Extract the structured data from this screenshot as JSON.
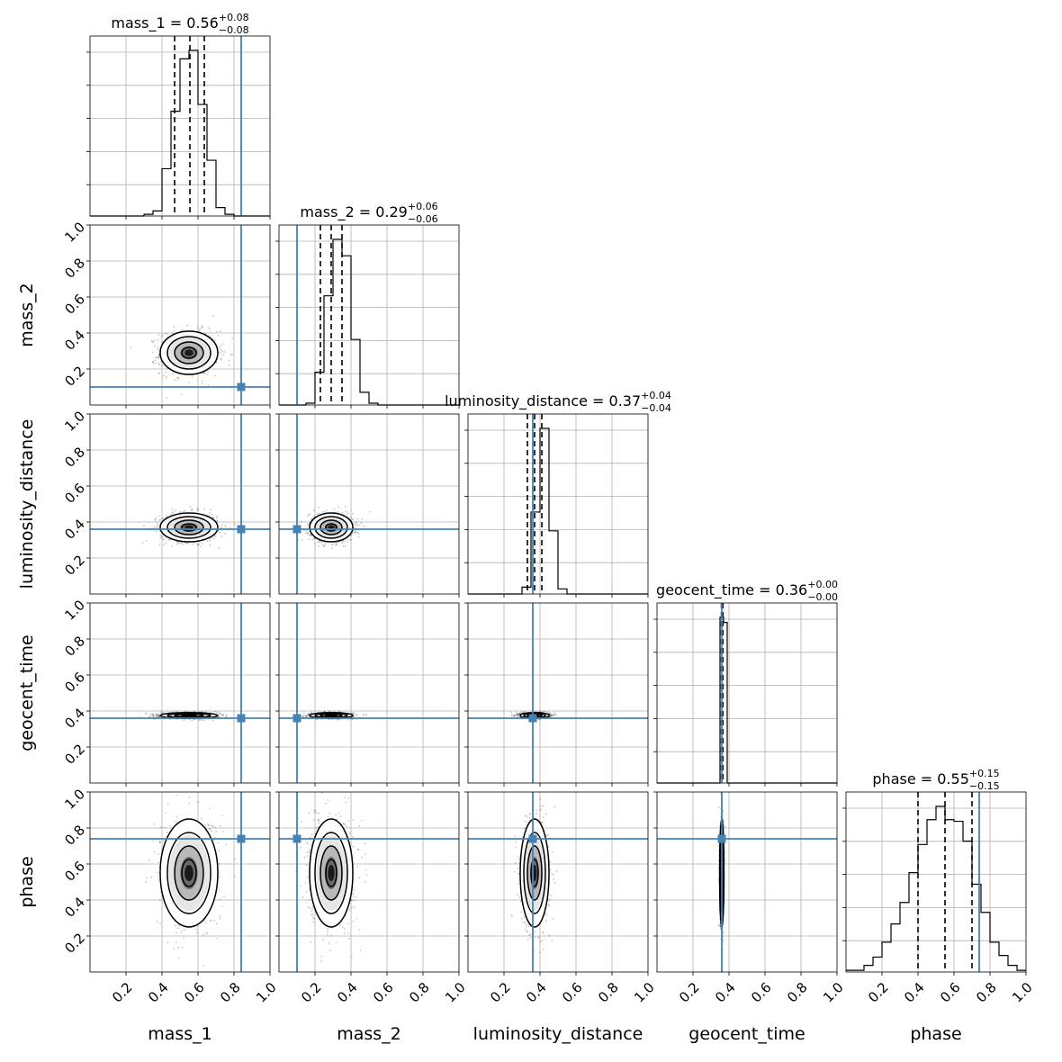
{
  "chart_data": {
    "type": "corner",
    "parameters": [
      "mass_1",
      "mass_2",
      "luminosity_distance",
      "geocent_time",
      "phase"
    ],
    "axis_range": [
      0,
      1
    ],
    "tick_labels": [
      "0.2",
      "0.4",
      "0.6",
      "0.8",
      "1.0"
    ],
    "grid": true,
    "truth_color": "#4682b4",
    "truths": [
      0.84,
      0.1,
      0.36,
      0.36,
      0.74
    ],
    "marginals": [
      {
        "parameter": "mass_1",
        "title_prefix": "mass_1 = ",
        "median": "0.56",
        "plus": "+0.08",
        "minus": "−0.08",
        "quantiles": [
          0.47,
          0.555,
          0.635
        ],
        "bins": [
          0,
          0.05,
          0.1,
          0.15,
          0.2,
          0.25,
          0.3,
          0.35,
          0.4,
          0.45,
          0.5,
          0.55,
          0.6,
          0.65,
          0.7,
          0.75,
          0.8,
          0.85,
          0.9,
          0.95,
          1.0
        ],
        "counts": [
          0,
          0,
          0,
          0,
          0,
          0,
          0.01,
          0.03,
          0.28,
          0.62,
          0.93,
          0.98,
          0.66,
          0.33,
          0.05,
          0.01,
          0,
          0,
          0,
          0
        ]
      },
      {
        "parameter": "mass_2",
        "title_prefix": "mass_2 = ",
        "median": "0.29",
        "plus": "+0.06",
        "minus": "−0.06",
        "quantiles": [
          0.23,
          0.29,
          0.35
        ],
        "bins": [
          0,
          0.05,
          0.1,
          0.15,
          0.2,
          0.25,
          0.3,
          0.35,
          0.4,
          0.45,
          0.5,
          0.55,
          0.6,
          0.65,
          0.7,
          0.75,
          0.8,
          0.85,
          0.9,
          0.95,
          1.0
        ],
        "counts": [
          0,
          0,
          0,
          0.01,
          0.18,
          0.6,
          0.91,
          0.82,
          0.36,
          0.07,
          0.01,
          0,
          0,
          0,
          0,
          0,
          0,
          0,
          0,
          0
        ]
      },
      {
        "parameter": "luminosity_distance",
        "title_prefix": "luminosity_distance = ",
        "median": "0.37",
        "plus": "+0.04",
        "minus": "−0.04",
        "quantiles": [
          0.33,
          0.37,
          0.41
        ],
        "bins": [
          0,
          0.05,
          0.1,
          0.15,
          0.2,
          0.25,
          0.3,
          0.35,
          0.4,
          0.45,
          0.5,
          0.55,
          0.6,
          0.65,
          0.7,
          0.75,
          0.8,
          0.85,
          0.9,
          0.95,
          1.0
        ],
        "counts": [
          0,
          0,
          0,
          0,
          0,
          0,
          0.04,
          0.48,
          0.97,
          0.37,
          0.03,
          0,
          0,
          0,
          0,
          0,
          0,
          0,
          0,
          0
        ]
      },
      {
        "parameter": "geocent_time",
        "title_prefix": "geocent_time = ",
        "median": "0.36",
        "plus": "+0.00",
        "minus": "−0.00",
        "quantiles": [
          0.358,
          0.362,
          0.366
        ],
        "bins": [
          0,
          0.35,
          0.37,
          0.39,
          1.0
        ],
        "counts": [
          0,
          0.98,
          0.95,
          0,
          0
        ]
      },
      {
        "parameter": "phase",
        "title_prefix": "phase = ",
        "median": "0.55",
        "plus": "+0.15",
        "minus": "−0.15",
        "quantiles": [
          0.4,
          0.55,
          0.7
        ],
        "bins": [
          0,
          0.05,
          0.1,
          0.15,
          0.2,
          0.25,
          0.3,
          0.35,
          0.4,
          0.45,
          0.5,
          0.55,
          0.6,
          0.65,
          0.7,
          0.75,
          0.8,
          0.85,
          0.9,
          0.95,
          1.0
        ],
        "counts": [
          0.01,
          0.01,
          0.04,
          0.09,
          0.18,
          0.29,
          0.42,
          0.6,
          0.77,
          0.92,
          1.0,
          0.92,
          0.91,
          0.79,
          0.53,
          0.36,
          0.18,
          0.1,
          0.04,
          0.01
        ]
      }
    ],
    "joint_panels": [
      {
        "x": "mass_1",
        "y": "mass_2",
        "cx": 0.55,
        "cy": 0.29,
        "sx": 0.08,
        "sy": 0.06
      },
      {
        "x": "mass_1",
        "y": "luminosity_distance",
        "cx": 0.55,
        "cy": 0.37,
        "sx": 0.08,
        "sy": 0.04
      },
      {
        "x": "mass_2",
        "y": "luminosity_distance",
        "cx": 0.29,
        "cy": 0.37,
        "sx": 0.06,
        "sy": 0.04
      },
      {
        "x": "mass_1",
        "y": "geocent_time",
        "cx": 0.55,
        "cy": 0.375,
        "sx": 0.08,
        "sy": 0.008
      },
      {
        "x": "mass_2",
        "y": "geocent_time",
        "cx": 0.29,
        "cy": 0.375,
        "sx": 0.06,
        "sy": 0.008
      },
      {
        "x": "luminosity_distance",
        "y": "geocent_time",
        "cx": 0.37,
        "cy": 0.375,
        "sx": 0.04,
        "sy": 0.008
      },
      {
        "x": "mass_1",
        "y": "phase",
        "cx": 0.55,
        "cy": 0.55,
        "sx": 0.08,
        "sy": 0.15
      },
      {
        "x": "mass_2",
        "y": "phase",
        "cx": 0.29,
        "cy": 0.55,
        "sx": 0.06,
        "sy": 0.15
      },
      {
        "x": "luminosity_distance",
        "y": "phase",
        "cx": 0.37,
        "cy": 0.55,
        "sx": 0.04,
        "sy": 0.15
      },
      {
        "x": "geocent_time",
        "y": "phase",
        "cx": 0.36,
        "cy": 0.55,
        "sx": 0.006,
        "sy": 0.15
      }
    ]
  }
}
